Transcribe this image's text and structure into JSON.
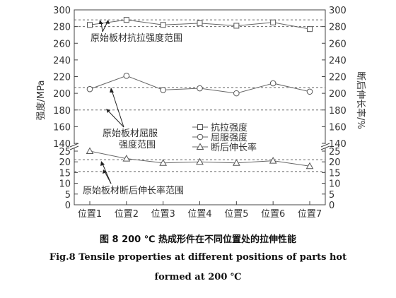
{
  "chart_data": {
    "type": "line",
    "categories": [
      "位置1",
      "位置2",
      "位置3",
      "位置4",
      "位置5",
      "位置6",
      "位置7"
    ],
    "series": [
      {
        "name": "抗拉强度",
        "marker": "square",
        "values": [
          282,
          288,
          282,
          284,
          281,
          285,
          277
        ]
      },
      {
        "name": "屈服强度",
        "marker": "circle",
        "values": [
          205,
          221,
          204,
          206,
          200,
          212,
          202
        ]
      },
      {
        "name": "断后伸长率",
        "marker": "triangle",
        "values": [
          25,
          21.5,
          19.5,
          20,
          19.5,
          20.5,
          18
        ]
      }
    ],
    "ylabel_left": "强度/MPa",
    "ylabel_right": "断后伸长率/%",
    "yticks_upper": [
      140,
      160,
      180,
      200,
      220,
      240,
      260,
      280,
      300
    ],
    "yticks_lower": [
      0,
      5,
      10,
      15,
      20,
      25
    ],
    "ylim_upper": [
      140,
      300
    ],
    "ylim_lower": [
      0,
      25
    ],
    "reference_lines_upper": [
      288,
      280,
      207,
      180
    ],
    "reference_lines_lower": [
      21,
      15.5
    ],
    "annotations": {
      "tensile_range": "原始板材抗拉强度范围",
      "yield_range_line1": "原始板材屈服",
      "yield_range_line2": "强度范围",
      "elong_range": "原始板材断后伸长率范围"
    },
    "legend_position": "middle-right"
  },
  "caption": {
    "cn": "图 8   200 ℃ 热成形件在不同位置处的拉伸性能",
    "en_line1": "Fig.8   Tensile properties at different positions of parts hot",
    "en_line2": "formed at 200 ℃"
  }
}
